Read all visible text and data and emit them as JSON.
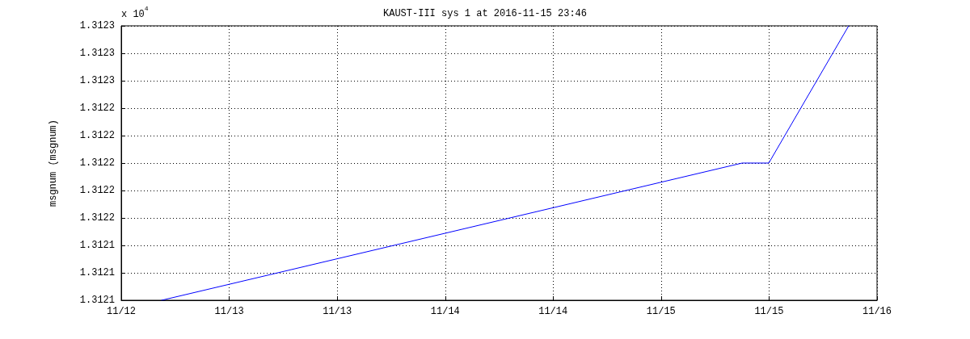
{
  "chart_data": {
    "type": "line",
    "title": "KAUST-III sys 1 at 2016-11-15 23:46",
    "ylabel": "msgnum (msgnum)",
    "annotations": [
      "x 10$^{4}$"
    ],
    "series": [
      {
        "color": "#0000ff",
        "x": [
          "2016-11-12T05:08",
          "2016-11-15T06:52",
          "2016-11-15T10:15",
          "2016-11-15T20:24"
        ],
        "values": [
          1.3121,
          1.3122,
          1.3122,
          1.3123
        ]
      }
    ],
    "xlim": [
      "2016-11-12T00:00",
      "2016-11-16T00:00"
    ],
    "xticks": [
      {
        "value": "2016-11-12T00:00",
        "label": "11/12"
      },
      {
        "value": "2016-11-12T13:43",
        "label": "11/13"
      },
      {
        "value": "2016-11-13T03:26",
        "label": "11/13"
      },
      {
        "value": "2016-11-13T17:09",
        "label": "11/14"
      },
      {
        "value": "2016-11-14T06:51",
        "label": "11/14"
      },
      {
        "value": "2016-11-14T20:34",
        "label": "11/15"
      },
      {
        "value": "2016-11-15T10:17",
        "label": "11/15"
      },
      {
        "value": "2016-11-16T00:00",
        "label": "11/16"
      }
    ],
    "ylim": [
      1.3121,
      1.3123
    ],
    "yticks": [
      {
        "value": 1.3121,
        "label": "1.3121"
      },
      {
        "value": 1.31212,
        "label": "1.3121"
      },
      {
        "value": 1.31214,
        "label": "1.3121"
      },
      {
        "value": 1.31216,
        "label": "1.3122"
      },
      {
        "value": 1.31218,
        "label": "1.3122"
      },
      {
        "value": 1.3122,
        "label": "1.3122"
      },
      {
        "value": 1.31222,
        "label": "1.3122"
      },
      {
        "value": 1.31224,
        "label": "1.3122"
      },
      {
        "value": 1.31226,
        "label": "1.3123"
      },
      {
        "value": 1.31228,
        "label": "1.3123"
      },
      {
        "value": 1.3123,
        "label": "1.3123"
      }
    ],
    "grid": true,
    "marker": "none"
  }
}
